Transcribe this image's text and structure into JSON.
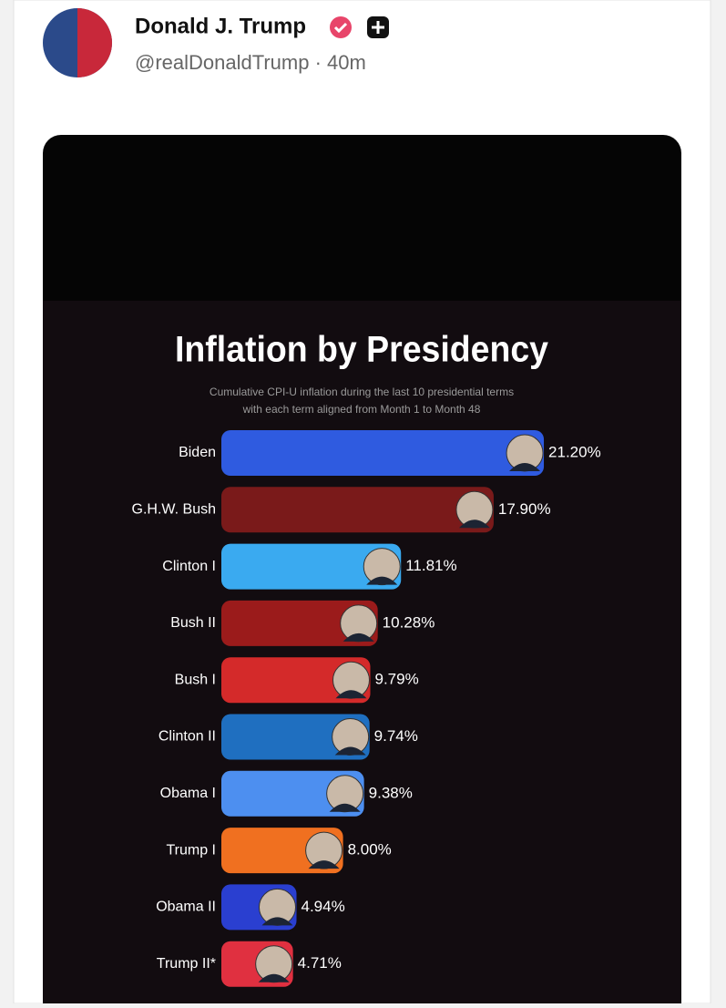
{
  "header": {
    "name": "Donald J. Trump",
    "handle": "@realDonaldTrump · 40m"
  },
  "chart_data": {
    "type": "bar",
    "orientation": "horizontal",
    "title": "Inflation by Presidency",
    "subtitle": [
      "Cumulative CPI-U inflation during the last 10 presidential terms",
      "with each term aligned from Month 1 to Month 48"
    ],
    "categories": [
      "Biden",
      "G.H.W. Bush",
      "Clinton I",
      "Bush II",
      "Bush I",
      "Clinton II",
      "Obama I",
      "Trump I",
      "Obama II",
      "Trump II*"
    ],
    "values": [
      21.2,
      17.9,
      11.81,
      10.28,
      9.79,
      9.74,
      9.38,
      8.0,
      4.94,
      4.71
    ],
    "value_labels": [
      "21.20%",
      "17.90%",
      "11.81%",
      "10.28%",
      "9.79%",
      "9.74%",
      "9.38%",
      "8.00%",
      "4.94%",
      "4.71%"
    ],
    "colors": [
      "#2f5be0",
      "#7a1a1a",
      "#3aaaf0",
      "#9b1b1b",
      "#d42a2a",
      "#1f6fc0",
      "#4d8ff0",
      "#f07020",
      "#2a3fd0",
      "#e03040"
    ]
  }
}
